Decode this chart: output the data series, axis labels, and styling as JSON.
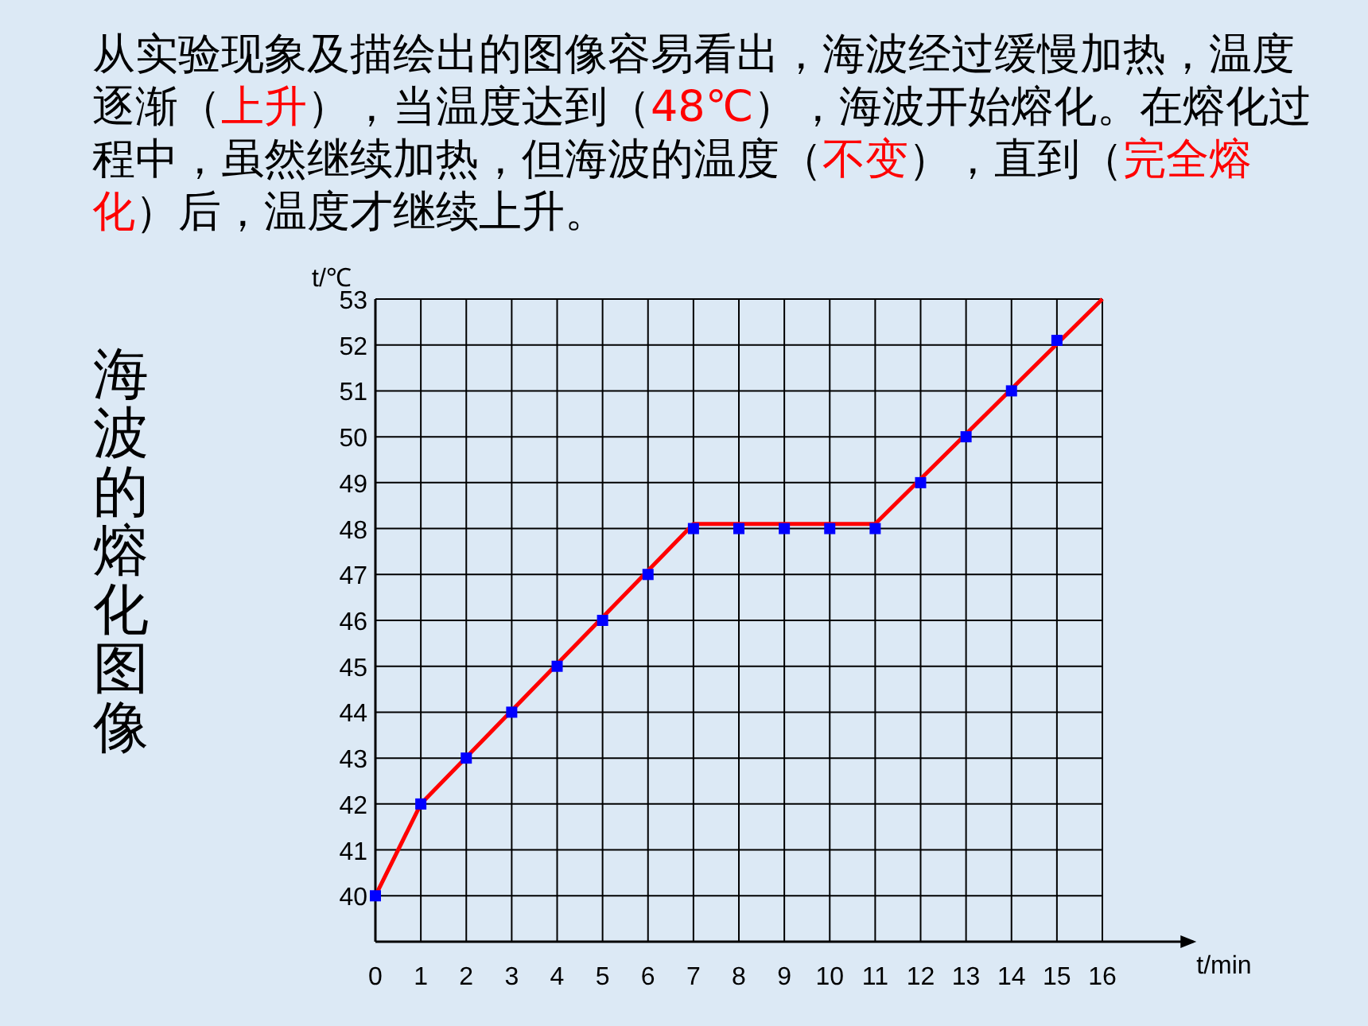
{
  "chart_data": {
    "type": "line",
    "title": "海波的熔化图像",
    "annotations": [
      "从实验现象及描绘出的图像容易看出，海波经过缓慢加热，温度逐渐（",
      "上升",
      "），当温度达到（",
      "48℃",
      "），海波开始熔化。在熔化过程中，虽然继续加热，但海波的温度（",
      "不变",
      "），直到（",
      "完全熔化",
      "）后，温度才继续上升。"
    ],
    "xlabel": "t/min",
    "ylabel": "t/℃",
    "xlim": [
      0,
      18
    ],
    "ylim": [
      39,
      53
    ],
    "xticks": [
      0,
      1,
      2,
      3,
      4,
      5,
      6,
      7,
      8,
      9,
      10,
      11,
      12,
      13,
      14,
      15,
      16
    ],
    "yticks": [
      40,
      41,
      42,
      43,
      44,
      45,
      46,
      47,
      48,
      49,
      50,
      51,
      52,
      53
    ],
    "grid": true,
    "series": [
      {
        "type": "scatter",
        "marker": "square",
        "color": "#0000ff",
        "x": [
          0,
          1,
          2,
          3,
          4,
          5,
          6,
          7,
          8,
          9,
          10,
          11,
          12,
          13,
          14,
          15
        ],
        "values": [
          40,
          42,
          43,
          44,
          45,
          46,
          47,
          48,
          48,
          48,
          48,
          48,
          49,
          50,
          51,
          52.1
        ]
      },
      {
        "type": "line",
        "marker": "none",
        "color": "#ff0000",
        "x": [
          0,
          1,
          7,
          11,
          16
        ],
        "values": [
          40,
          42,
          48.1,
          48.1,
          53
        ]
      }
    ]
  }
}
